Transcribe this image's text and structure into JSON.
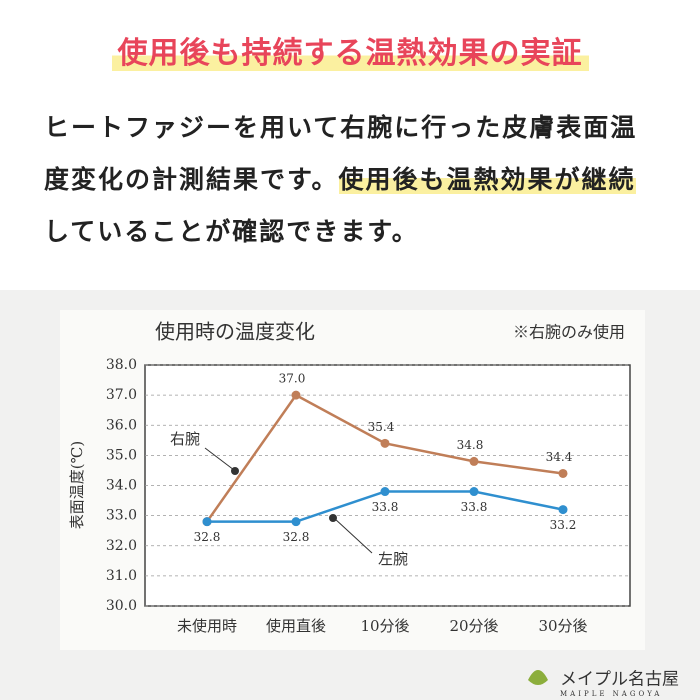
{
  "header": {
    "title": "使用後も持続する温熱効果の実証",
    "paragraph": [
      "ヒートファジーを用いて右腕に行った皮膚表面温度変化の計測結果です。",
      "使用後も温熱効果が継続",
      "していることが確認できます。"
    ]
  },
  "chart_data": {
    "type": "line",
    "title": "使用時の温度変化",
    "note": "※右腕のみ使用",
    "y_label": "表面温度(℃)",
    "categories": [
      "未使用時",
      "使用直後",
      "10分後",
      "20分後",
      "30分後"
    ],
    "series": [
      {
        "name": "右腕",
        "color": "#c07e58",
        "values": [
          32.8,
          37.0,
          35.4,
          34.8,
          34.4
        ],
        "value_labels": [
          null,
          "37.0",
          "35.4",
          "34.8",
          "34.4"
        ]
      },
      {
        "name": "左腕",
        "color": "#2f8fcf",
        "values": [
          32.8,
          32.8,
          33.8,
          33.8,
          33.2
        ],
        "value_labels": [
          "32.8",
          "32.8",
          "33.8",
          "33.8",
          "33.2"
        ]
      }
    ],
    "ylim": [
      30,
      38
    ],
    "yticks": [
      {
        "value": 30,
        "label": "30.0"
      },
      {
        "value": 31,
        "label": "31.0"
      },
      {
        "value": 32,
        "label": "32.0"
      },
      {
        "value": 33,
        "label": "33.0"
      },
      {
        "value": 34,
        "label": "34.0"
      },
      {
        "value": 35,
        "label": "35.0"
      },
      {
        "value": 36,
        "label": "36.0"
      },
      {
        "value": 37,
        "label": "37.0"
      },
      {
        "value": 38,
        "label": "38.0"
      }
    ],
    "grid": true
  },
  "logo": {
    "name": "メイプル名古屋",
    "sub": "MAIPLE NAGOYA"
  }
}
